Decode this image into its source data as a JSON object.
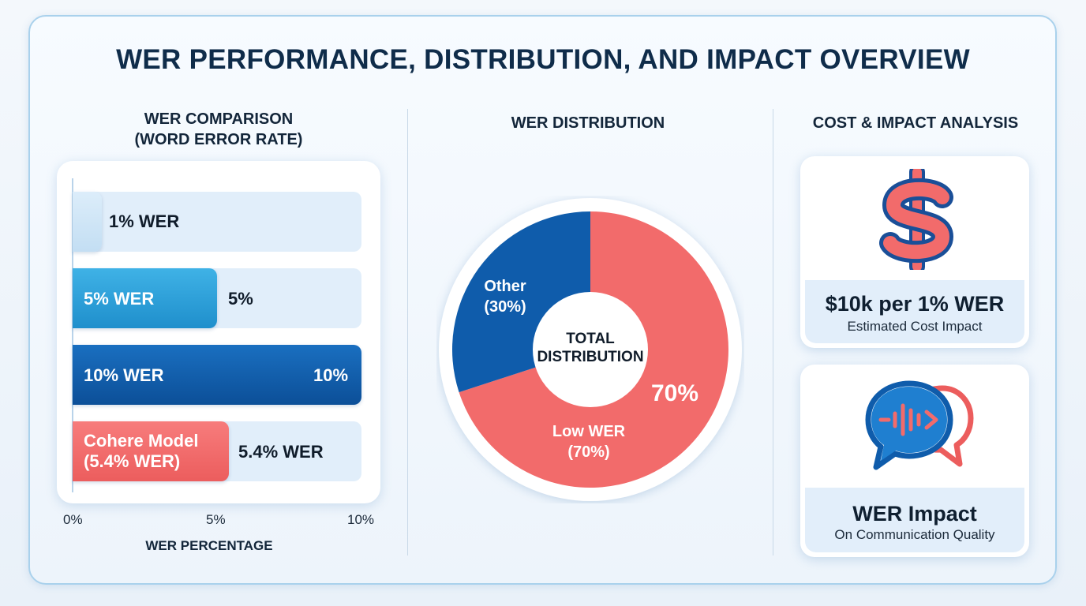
{
  "title": "WER PERFORMANCE, DISTRIBUTION, AND IMPACT OVERVIEW",
  "sections": {
    "comparison_title_line1": "WER COMPARISON",
    "comparison_title_line2": "(WORD ERROR RATE)",
    "distribution_title": "WER DISTRIBUTION",
    "impact_title": "COST & IMPACT ANALYSIS"
  },
  "bars": {
    "b1_inner": "",
    "b1_outer": "1% WER",
    "b2_inner": "5% WER",
    "b2_outer": "5%",
    "b3_inner": "10% WER",
    "b3_outer": "10%",
    "b4_inner_line1": "Cohere Model",
    "b4_inner_line2": "(5.4% WER)",
    "b4_outer": "5.4% WER"
  },
  "donut": {
    "center_line1": "TOTAL",
    "center_line2": "DISTRIBUTION",
    "other_line1": "Other",
    "other_line2": "(30%)",
    "low_line1": "Low WER",
    "low_line2": "(70%)",
    "low_big": "70%"
  },
  "cards": {
    "cost_value": "$10k per 1% WER",
    "cost_sub": "Estimated Cost Impact",
    "impact_value": "WER Impact",
    "impact_sub": "On Communication Quality"
  },
  "colors": {
    "red": "#f26b6b",
    "blue_dark": "#0f5cab",
    "blue_mid": "#2ea1d9",
    "blue_light": "#d2e7f8"
  },
  "chart_data": [
    {
      "type": "bar",
      "title": "WER COMPARISON (WORD ERROR RATE)",
      "orientation": "horizontal",
      "categories": [
        "1% WER",
        "5% WER",
        "10% WER",
        "Cohere Model (5.4% WER)"
      ],
      "values": [
        1,
        5,
        10,
        5.4
      ],
      "xlabel": "WER PERCENTAGE",
      "xlim": [
        0,
        10
      ],
      "xticks": [
        "0%",
        "5%",
        "10%"
      ]
    },
    {
      "type": "pie",
      "title": "WER DISTRIBUTION",
      "donut": true,
      "labels": [
        "Low WER",
        "Other"
      ],
      "values": [
        70,
        30
      ],
      "center_label": "TOTAL DISTRIBUTION"
    }
  ]
}
